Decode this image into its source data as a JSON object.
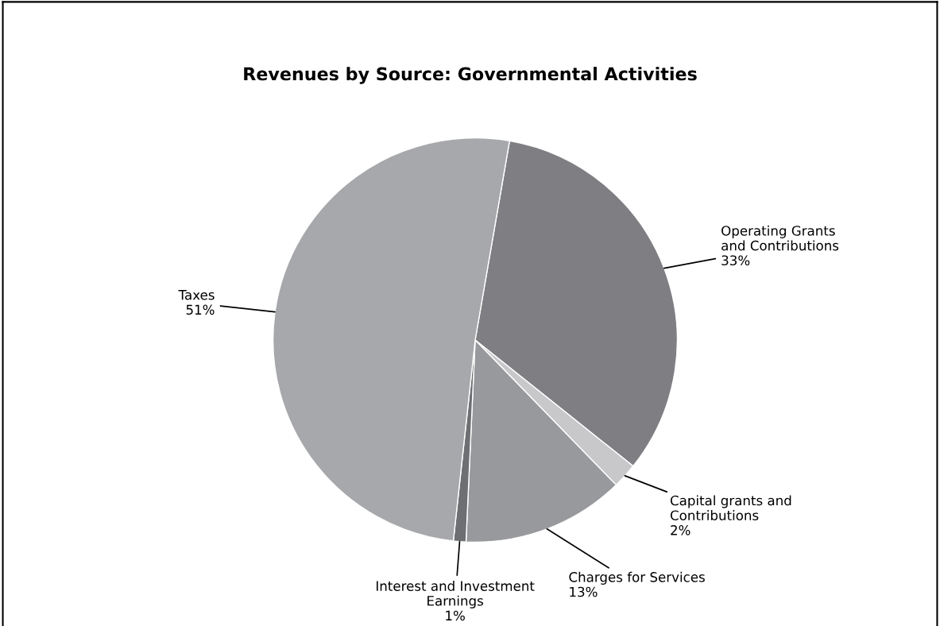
{
  "chart_data": {
    "type": "pie",
    "title": "Revenues by Source: Governmental Activities",
    "categories": [
      "Operating Grants\nand Contributions",
      "Capital grants and\nContributions",
      "Charges for Services",
      "Interest and Investment\nEarnings",
      "Taxes"
    ],
    "values": [
      33,
      2,
      13,
      1,
      51
    ],
    "value_labels": [
      "33%",
      "2%",
      "13%",
      "1%",
      "51%"
    ],
    "colors": [
      "#7f7f83",
      "#c8c8ca",
      "#98999c",
      "#6e6f72",
      "#a7a8ab"
    ],
    "legend": false
  }
}
